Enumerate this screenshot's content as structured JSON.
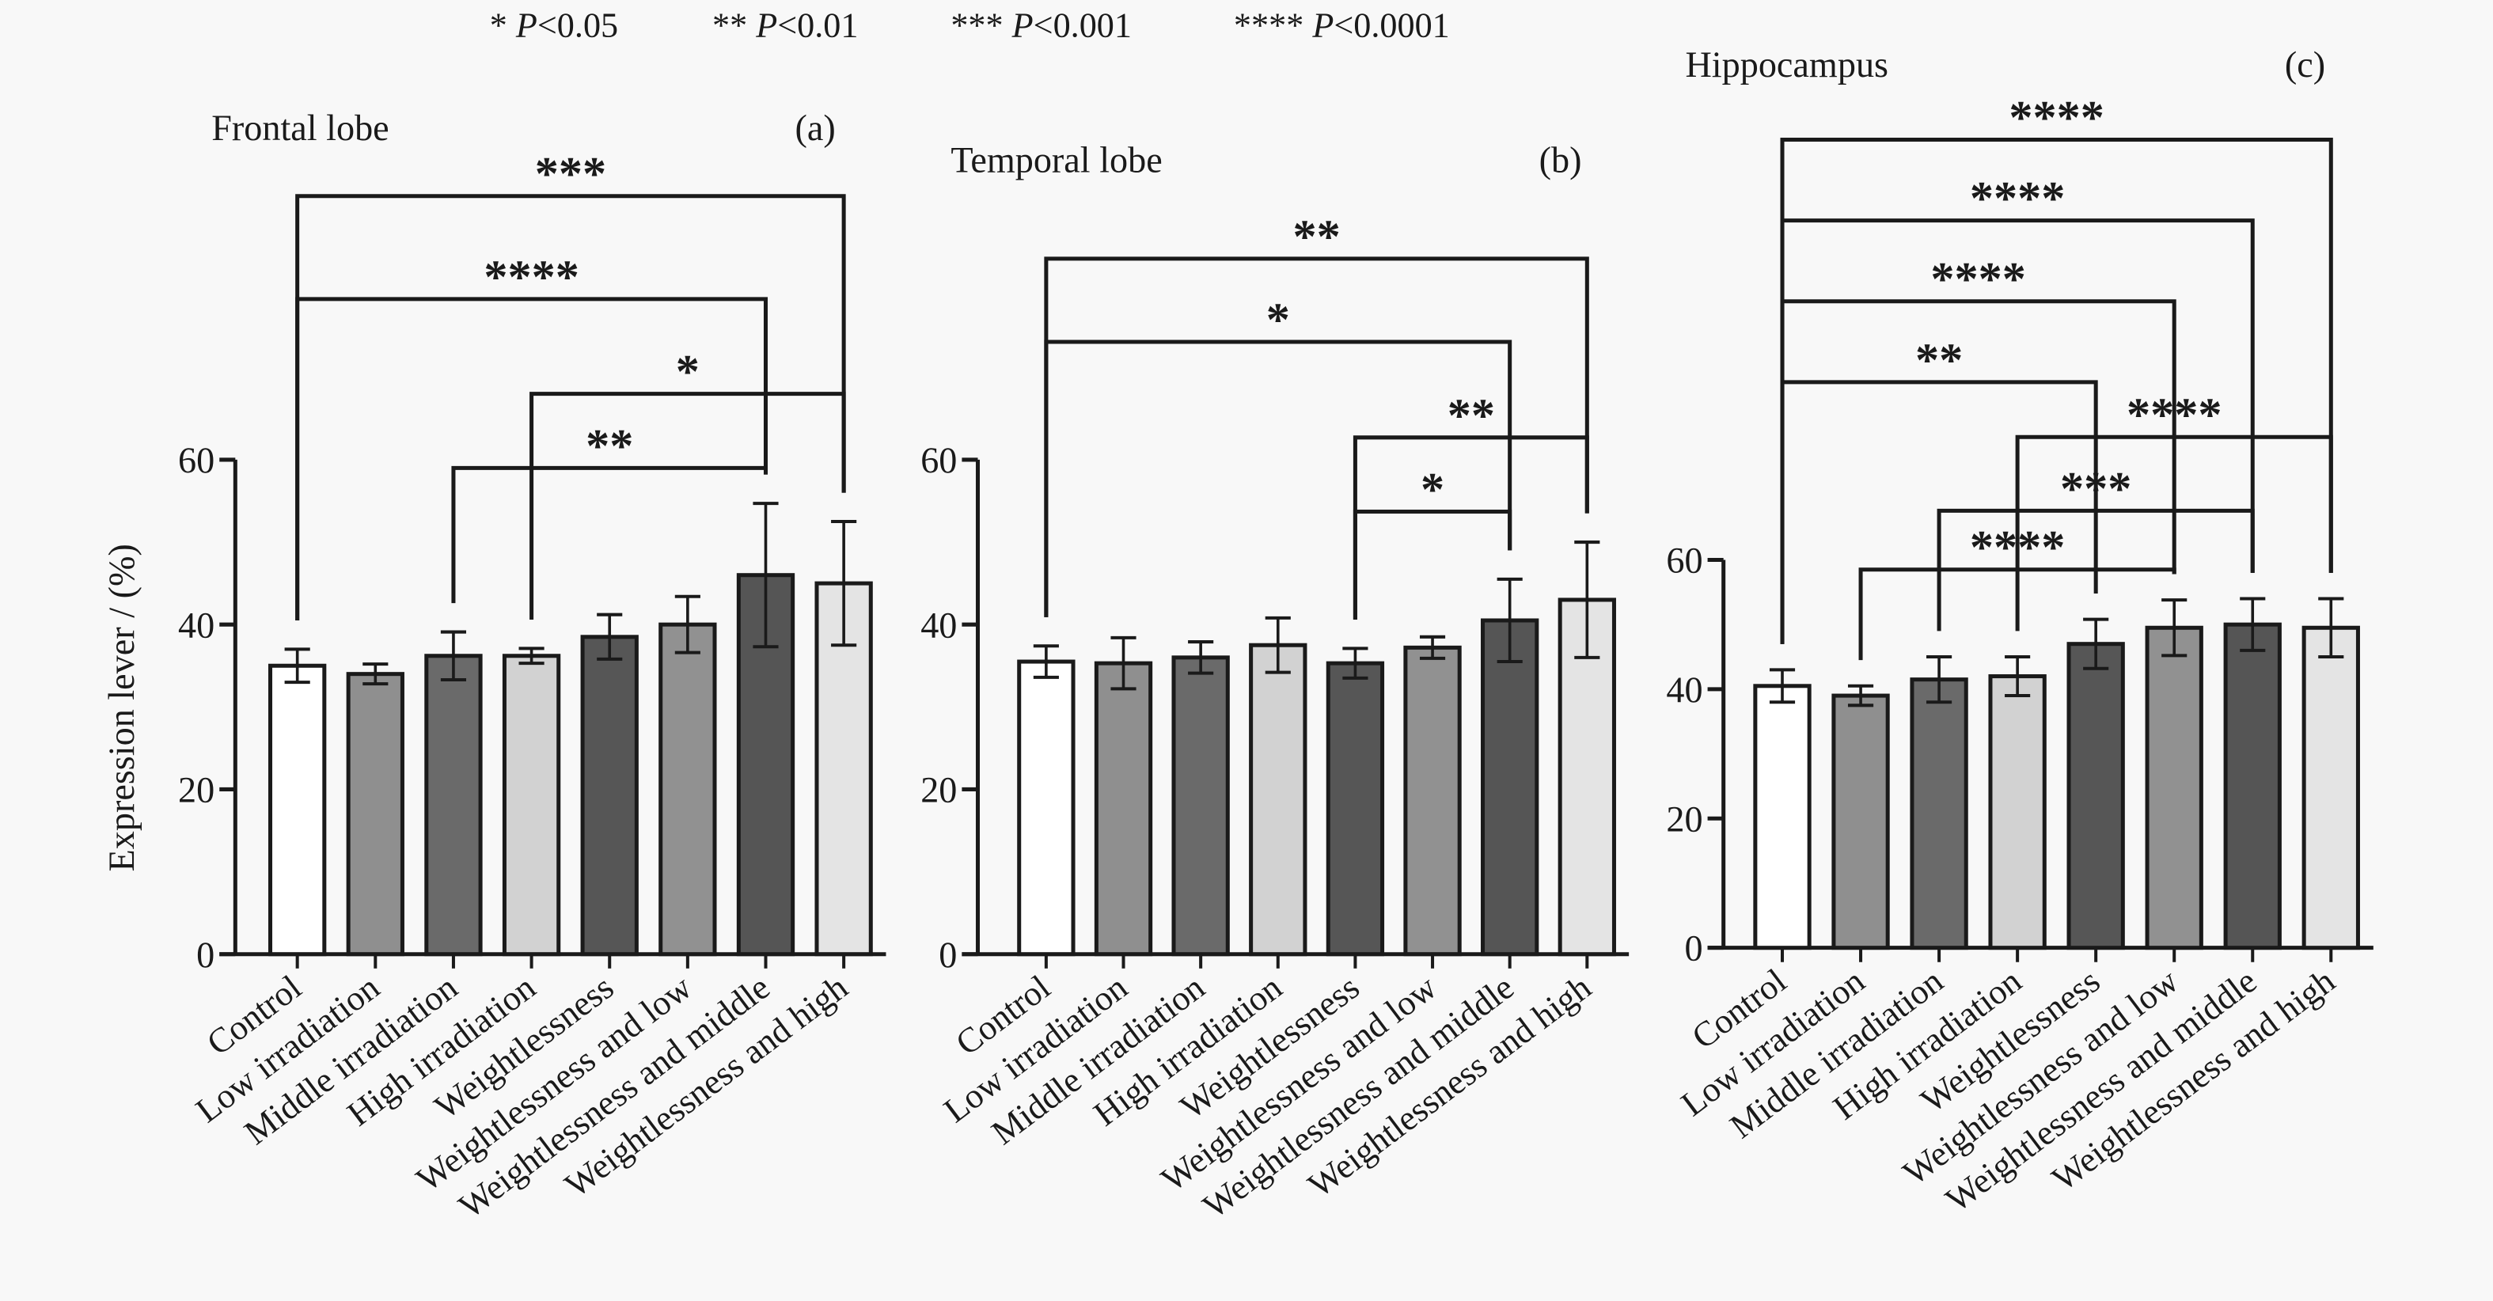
{
  "legend": [
    {
      "stars": "*",
      "p": "P",
      "threshold": "<0.05"
    },
    {
      "stars": "**",
      "p": "P",
      "threshold": "<0.01"
    },
    {
      "stars": "***",
      "p": "P",
      "threshold": "<0.001"
    },
    {
      "stars": "****",
      "p": "P",
      "threshold": "<0.0001"
    }
  ],
  "colors": {
    "background": "#f8f8f8",
    "bar_fills": [
      "#ffffff",
      "#8f8f8f",
      "#6a6a6a",
      "#d2d2d2",
      "#565656",
      "#919191",
      "#555555",
      "#e4e4e4"
    ],
    "stroke": "#1a1a1a"
  },
  "chart_data": [
    {
      "type": "bar",
      "title": "Frontal lobe",
      "panel_label": "(a)",
      "ylabel": "Expression lever / (%)",
      "ylim": [
        0,
        60
      ],
      "yticks": [
        0,
        20,
        40,
        60
      ],
      "categories": [
        "Control",
        "Low irradiation",
        "Middle irradiation",
        "High irradiation",
        "Weightlessness",
        "Weightlessness and low",
        "Weightlessness and middle",
        "Weightlessness and high"
      ],
      "values": [
        35,
        34,
        36.2,
        36.2,
        38.5,
        40,
        46,
        45
      ],
      "errors": [
        2,
        1.2,
        2.9,
        0.9,
        2.7,
        3.4,
        8.7,
        7.5
      ],
      "significance": [
        {
          "from": 0,
          "to": 7,
          "label": "***",
          "level": 92
        },
        {
          "from": 0,
          "to": 6,
          "label": "****",
          "level": 79.5
        },
        {
          "from": 3,
          "to": 7,
          "label": "*",
          "level": 68
        },
        {
          "from": 2,
          "to": 6,
          "label": "**",
          "level": 59
        }
      ]
    },
    {
      "type": "bar",
      "title": "Temporal lobe",
      "panel_label": "(b)",
      "ylabel": "",
      "ylim": [
        0,
        60
      ],
      "yticks": [
        0,
        20,
        40,
        60
      ],
      "categories": [
        "Control",
        "Low irradiation",
        "Middle irradiation",
        "High irradiation",
        "Weightlessness",
        "Weightlessness and low",
        "Weightlessness and middle",
        "Weightlessness and high"
      ],
      "values": [
        35.5,
        35.3,
        36,
        37.5,
        35.3,
        37.2,
        40.5,
        43
      ],
      "errors": [
        1.9,
        3.1,
        1.9,
        3.3,
        1.8,
        1.3,
        5,
        7
      ],
      "significance": [
        {
          "from": 0,
          "to": 7,
          "label": "**",
          "level": 84.4
        },
        {
          "from": 0,
          "to": 6,
          "label": "*",
          "level": 74.3
        },
        {
          "from": 4,
          "to": 7,
          "label": "**",
          "level": 62.7
        },
        {
          "from": 4,
          "to": 6,
          "label": "*",
          "level": 53.7
        }
      ]
    },
    {
      "type": "bar",
      "title": "Hippocampus",
      "panel_label": "(c)",
      "ylabel": "",
      "ylim": [
        0,
        60
      ],
      "yticks": [
        0,
        20,
        40,
        60
      ],
      "categories": [
        "Control",
        "Low irradiation",
        "Middle irradiation",
        "High irradiation",
        "Weightlessness",
        "Weightlessness and low",
        "Weightlessness and middle",
        "Weightlessness and high"
      ],
      "values": [
        40.5,
        39,
        41.5,
        42,
        47,
        49.5,
        50,
        49.5
      ],
      "errors": [
        2.5,
        1.5,
        3.5,
        3,
        3.8,
        4.3,
        4,
        4.5
      ],
      "significance": [
        {
          "from": 0,
          "to": 7,
          "label": "****",
          "level": 125
        },
        {
          "from": 0,
          "to": 6,
          "label": "****",
          "level": 112.5
        },
        {
          "from": 0,
          "to": 5,
          "label": "****",
          "level": 100
        },
        {
          "from": 0,
          "to": 4,
          "label": "**",
          "level": 87.5
        },
        {
          "from": 3,
          "to": 7,
          "label": "****",
          "level": 79
        },
        {
          "from": 2,
          "to": 6,
          "label": "***",
          "level": 67.6
        },
        {
          "from": 1,
          "to": 5,
          "label": "****",
          "level": 58.5
        }
      ]
    }
  ]
}
